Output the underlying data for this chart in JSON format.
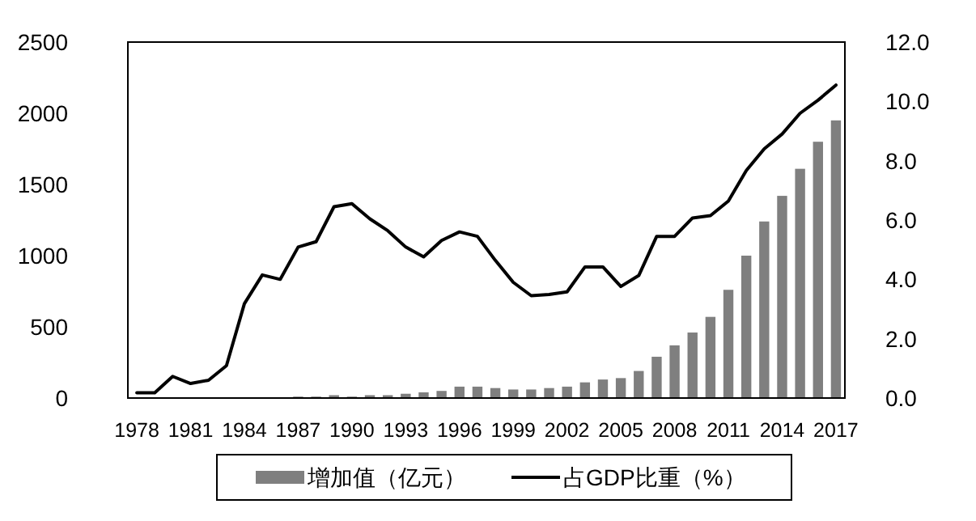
{
  "chart_data": {
    "type": "bar",
    "categories": [
      "1978",
      null,
      null,
      "1981",
      null,
      null,
      "1984",
      null,
      null,
      "1987",
      null,
      null,
      "1990",
      null,
      null,
      "1993",
      null,
      null,
      "1996",
      null,
      null,
      "1999",
      null,
      null,
      "2002",
      null,
      null,
      "2005",
      null,
      null,
      "2008",
      null,
      null,
      "2011",
      null,
      null,
      "2014",
      null,
      null,
      "2017"
    ],
    "series": [
      {
        "name": "增加值（亿元）",
        "color": "#7f7f7f",
        "values": [
          null,
          null,
          null,
          null,
          null,
          null,
          null,
          null,
          null,
          10,
          10,
          20,
          10,
          20,
          20,
          30,
          40,
          50,
          80,
          80,
          70,
          60,
          60,
          70,
          80,
          110,
          130,
          140,
          190,
          290,
          370,
          460,
          570,
          760,
          1000,
          1240,
          1420,
          1610,
          1800,
          1950
        ]
      },
      {
        "name": "占GDP比重（%）",
        "type": "line",
        "axis": "y2",
        "color": "#000000",
        "values": [
          0.18,
          0.18,
          0.73,
          0.49,
          0.6,
          1.09,
          3.18,
          4.15,
          4.0,
          5.09,
          5.27,
          6.45,
          6.55,
          6.04,
          5.64,
          5.09,
          4.76,
          5.31,
          5.6,
          5.45,
          4.64,
          3.9,
          3.45,
          3.49,
          3.58,
          4.42,
          4.42,
          3.76,
          4.13,
          5.45,
          5.45,
          6.07,
          6.15,
          6.64,
          7.67,
          8.4,
          8.9,
          9.6,
          10.04,
          10.55
        ]
      }
    ],
    "ylim": [
      0,
      2500
    ],
    "yticks": [
      0,
      500,
      1000,
      1500,
      2000,
      2500
    ],
    "y2lim": [
      0,
      12
    ],
    "y2ticks": [
      {
        "value": 0,
        "label": "0.0"
      },
      {
        "value": 2,
        "label": "2.0"
      },
      {
        "value": 4,
        "label": "4.0"
      },
      {
        "value": 6,
        "label": "6.0"
      },
      {
        "value": 8,
        "label": "8.0"
      },
      {
        "value": 10,
        "label": "10.0"
      },
      {
        "value": 12,
        "label": "12.0"
      }
    ],
    "legend": "bottom",
    "grid": false
  }
}
